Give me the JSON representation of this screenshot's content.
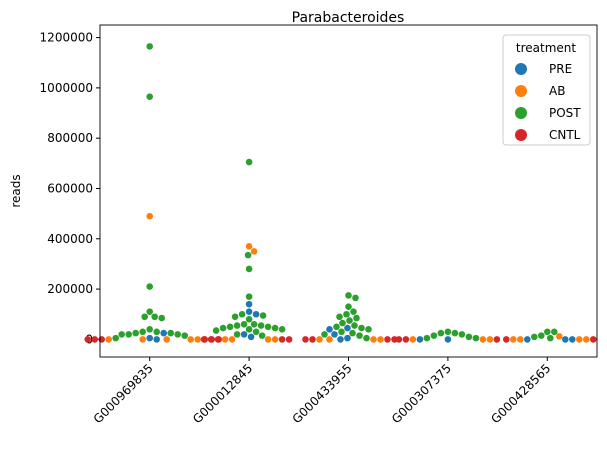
{
  "chart_data": {
    "type": "swarm",
    "title": "Parabacteroides",
    "y_label": "reads",
    "categories": [
      "G000969835",
      "G000012845",
      "G000433955",
      "G000307375",
      "G000428565"
    ],
    "legend_title": "treatment",
    "legend_loc": "upper right",
    "series": [
      {
        "name": "PRE",
        "color": "#1f77b4",
        "values": [
          [
            25000,
            5000,
            0
          ],
          [
            140000,
            110000,
            100000,
            20000,
            10000
          ],
          [
            45000,
            40000,
            20000,
            5000,
            0
          ],
          [
            0,
            0
          ],
          [
            0,
            0,
            0
          ]
        ]
      },
      {
        "name": "AB",
        "color": "#ff7f0e",
        "values": [
          [
            490000,
            0,
            0,
            0,
            0,
            0
          ],
          [
            370000,
            350000,
            0,
            0,
            0,
            0
          ],
          [
            0,
            0,
            0,
            0
          ],
          [
            0,
            0,
            0
          ],
          [
            12000,
            0,
            0,
            0,
            0
          ]
        ]
      },
      {
        "name": "POST",
        "color": "#2ca02c",
        "values": [
          [
            1165000,
            965000,
            210000,
            110000,
            90000,
            85000,
            90000,
            40000,
            30000,
            30000,
            25000,
            25000,
            20000,
            15000,
            5000,
            20000,
            20000
          ],
          [
            705000,
            335000,
            280000,
            170000,
            100000,
            95000,
            90000,
            80000,
            60000,
            55000,
            55000,
            50000,
            50000,
            45000,
            45000,
            40000,
            40000,
            35000,
            30000,
            20000,
            15000,
            60000
          ],
          [
            175000,
            165000,
            130000,
            110000,
            100000,
            90000,
            85000,
            75000,
            65000,
            55000,
            50000,
            45000,
            40000,
            30000,
            25000,
            20000,
            15000,
            5000
          ],
          [
            30000,
            25000,
            25000,
            20000,
            15000,
            10000,
            5000,
            5000
          ],
          [
            30000,
            30000,
            15000,
            10000,
            5000
          ]
        ]
      },
      {
        "name": "CNTL",
        "color": "#d62728",
        "values": [
          [
            0,
            0,
            0,
            0,
            0,
            0
          ],
          [
            0,
            0,
            0,
            0,
            0
          ],
          [
            0,
            0,
            0,
            0
          ],
          [
            0,
            0,
            0
          ],
          [
            0,
            0
          ]
        ]
      }
    ],
    "ylim": [
      -70000,
      1250000
    ],
    "yticks": [
      0,
      200000,
      400000,
      600000,
      800000,
      1000000,
      1200000
    ]
  }
}
